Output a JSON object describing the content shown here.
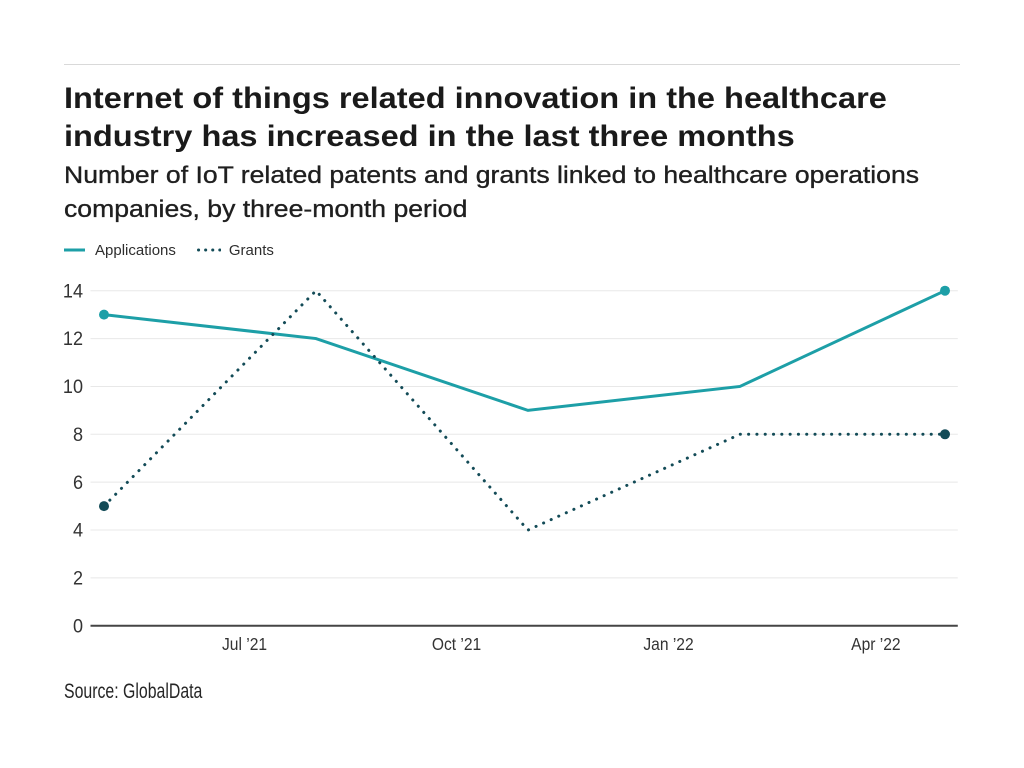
{
  "header": {
    "title": "Internet of things related innovation in the healthcare industry has increased in the last three months",
    "subtitle": "Number of IoT related patents and grants linked to healthcare operations companies, by three-month period"
  },
  "footer": {
    "source": "Source: GlobalData"
  },
  "chart_data": {
    "type": "line",
    "title": "Internet of things related innovation in the healthcare industry has increased in the last three months",
    "subtitle": "Number of IoT related patents and grants linked to healthcare operations companies, by three-month period",
    "source": "Source: GlobalData",
    "legend_position": "top-left",
    "grid": "horizontal",
    "x_days": [
      0,
      92,
      184,
      276,
      365
    ],
    "x_ticks": [
      {
        "label": "Jul ’21",
        "day": 61
      },
      {
        "label": "Oct ’21",
        "day": 153
      },
      {
        "label": "Jan ’22",
        "day": 245
      },
      {
        "label": "Apr ’22",
        "day": 335
      }
    ],
    "y_ticks": [
      0,
      2,
      4,
      6,
      8,
      10,
      12,
      14
    ],
    "ylim": [
      0,
      14
    ],
    "series": [
      {
        "name": "Applications",
        "style": "solid",
        "color": "#1d9fa7",
        "marker_color": "#1d9fa7",
        "values": [
          13,
          12,
          9,
          10,
          14
        ]
      },
      {
        "name": "Grants",
        "style": "dotted",
        "color": "#134b57",
        "marker_color": "#134b57",
        "values": [
          5,
          14,
          4,
          8,
          8
        ]
      }
    ]
  }
}
